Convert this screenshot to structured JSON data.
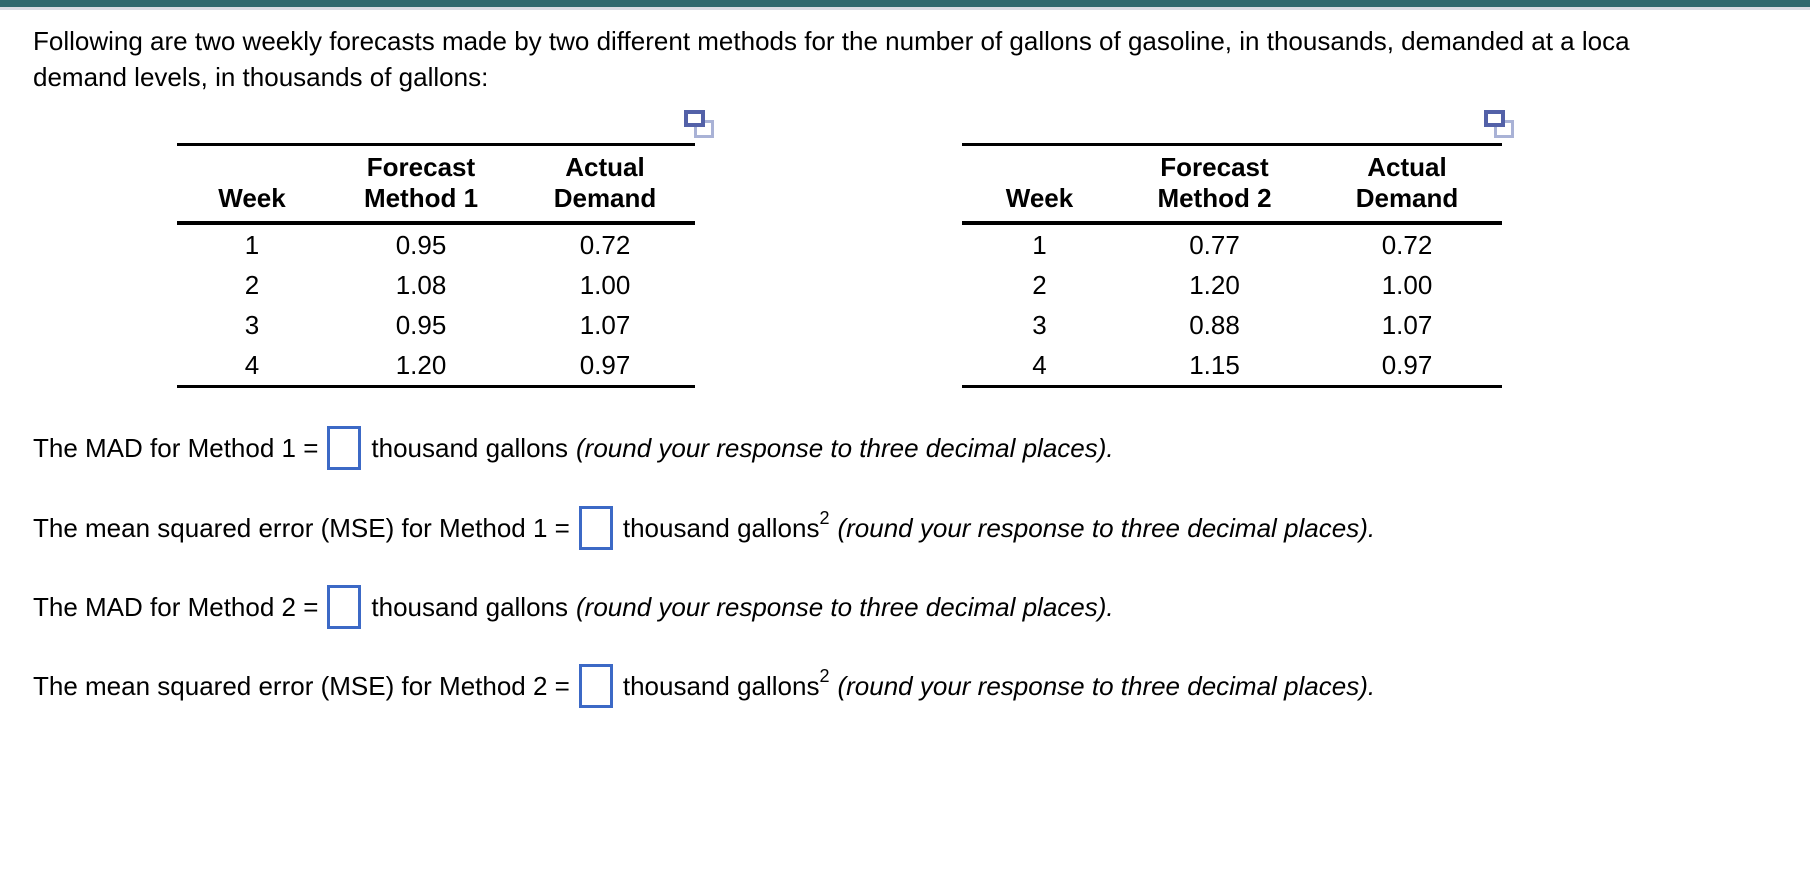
{
  "intro": {
    "line1": "Following are two weekly forecasts made by two different methods for the number of gallons of gasoline, in thousands, demanded at a loca",
    "line2": "demand levels, in thousands of gallons:"
  },
  "tables": [
    {
      "headers": {
        "week": "Week",
        "forecast": [
          "Forecast",
          "Method 1"
        ],
        "actual": [
          "Actual",
          "Demand"
        ]
      },
      "rows": [
        [
          "1",
          "0.95",
          "0.72"
        ],
        [
          "2",
          "1.08",
          "1.00"
        ],
        [
          "3",
          "0.95",
          "1.07"
        ],
        [
          "4",
          "1.20",
          "0.97"
        ]
      ]
    },
    {
      "headers": {
        "week": "Week",
        "forecast": [
          "Forecast",
          "Method 2"
        ],
        "actual": [
          "Actual",
          "Demand"
        ]
      },
      "rows": [
        [
          "1",
          "0.77",
          "0.72"
        ],
        [
          "2",
          "1.20",
          "1.00"
        ],
        [
          "3",
          "0.88",
          "1.07"
        ],
        [
          "4",
          "1.15",
          "0.97"
        ]
      ]
    }
  ],
  "questions": [
    {
      "prefix": "The MAD for Method 1 =",
      "input_value": "",
      "unit": "thousand gallons",
      "unit_sup": "",
      "note": "(round your response to three decimal places)."
    },
    {
      "prefix": "The mean squared error (MSE) for Method 1 =",
      "input_value": "",
      "unit": "thousand gallons",
      "unit_sup": "2",
      "note": "(round your response to three decimal places)."
    },
    {
      "prefix": "The MAD for Method 2 =",
      "input_value": "",
      "unit": "thousand gallons",
      "unit_sup": "",
      "note": "(round your response to three decimal places)."
    },
    {
      "prefix": "The mean squared error (MSE) for Method 2 =",
      "input_value": "",
      "unit": "thousand gallons",
      "unit_sup": "2",
      "note": "(round your response to three decimal places)."
    }
  ],
  "colors": {
    "top_bar": "#2F6A6C",
    "top_bar_divider": "#D9DDE1",
    "input_border": "#3C69C6",
    "copy_icon_front": "#5361A8",
    "copy_icon_back": "#A9B2D6"
  }
}
